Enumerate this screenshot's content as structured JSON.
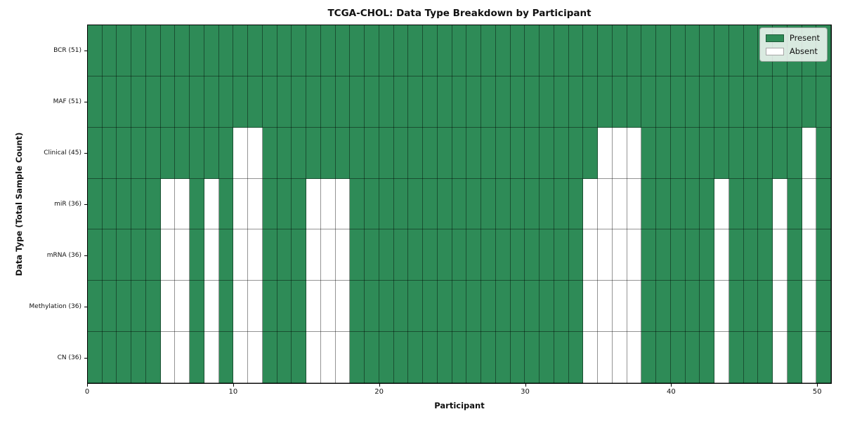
{
  "chart_data": {
    "type": "heatmap",
    "title": "TCGA-CHOL: Data Type Breakdown by Participant",
    "xlabel": "Participant",
    "ylabel": "Data Type (Total Sample Count)",
    "x_ticks": [
      0,
      10,
      20,
      30,
      40,
      50
    ],
    "x_range": [
      0,
      51
    ],
    "n_participants": 51,
    "grid": true,
    "legend_position": "upper right",
    "legend": [
      {
        "label": "Present",
        "color": "#2e8b57"
      },
      {
        "label": "Absent",
        "color": "#ffffff"
      }
    ],
    "rows": [
      {
        "label": "BCR (51)",
        "data_type": "BCR",
        "present_count": 51,
        "absent_participants": []
      },
      {
        "label": "MAF (51)",
        "data_type": "MAF",
        "present_count": 51,
        "absent_participants": []
      },
      {
        "label": "Clinical (45)",
        "data_type": "Clinical",
        "present_count": 45,
        "absent_participants": [
          10,
          11,
          35,
          36,
          37,
          49
        ]
      },
      {
        "label": "miR (36)",
        "data_type": "miR",
        "present_count": 36,
        "absent_participants": [
          5,
          6,
          8,
          10,
          11,
          15,
          16,
          17,
          34,
          35,
          36,
          37,
          43,
          47,
          49
        ]
      },
      {
        "label": "mRNA (36)",
        "data_type": "mRNA",
        "present_count": 36,
        "absent_participants": [
          5,
          6,
          8,
          10,
          11,
          15,
          16,
          17,
          34,
          35,
          36,
          37,
          43,
          47,
          49
        ]
      },
      {
        "label": "Methylation (36)",
        "data_type": "Methylation",
        "present_count": 36,
        "absent_participants": [
          5,
          6,
          8,
          10,
          11,
          15,
          16,
          17,
          34,
          35,
          36,
          37,
          43,
          47,
          49
        ]
      },
      {
        "label": "CN (36)",
        "data_type": "CN",
        "present_count": 36,
        "absent_participants": [
          5,
          6,
          8,
          10,
          11,
          15,
          16,
          17,
          34,
          35,
          36,
          37,
          43,
          47,
          49
        ]
      }
    ]
  },
  "colors": {
    "present": "#2e8b57",
    "absent": "#ffffff",
    "grid_line": "rgba(0,0,0,0.42)",
    "frame": "#000000"
  }
}
